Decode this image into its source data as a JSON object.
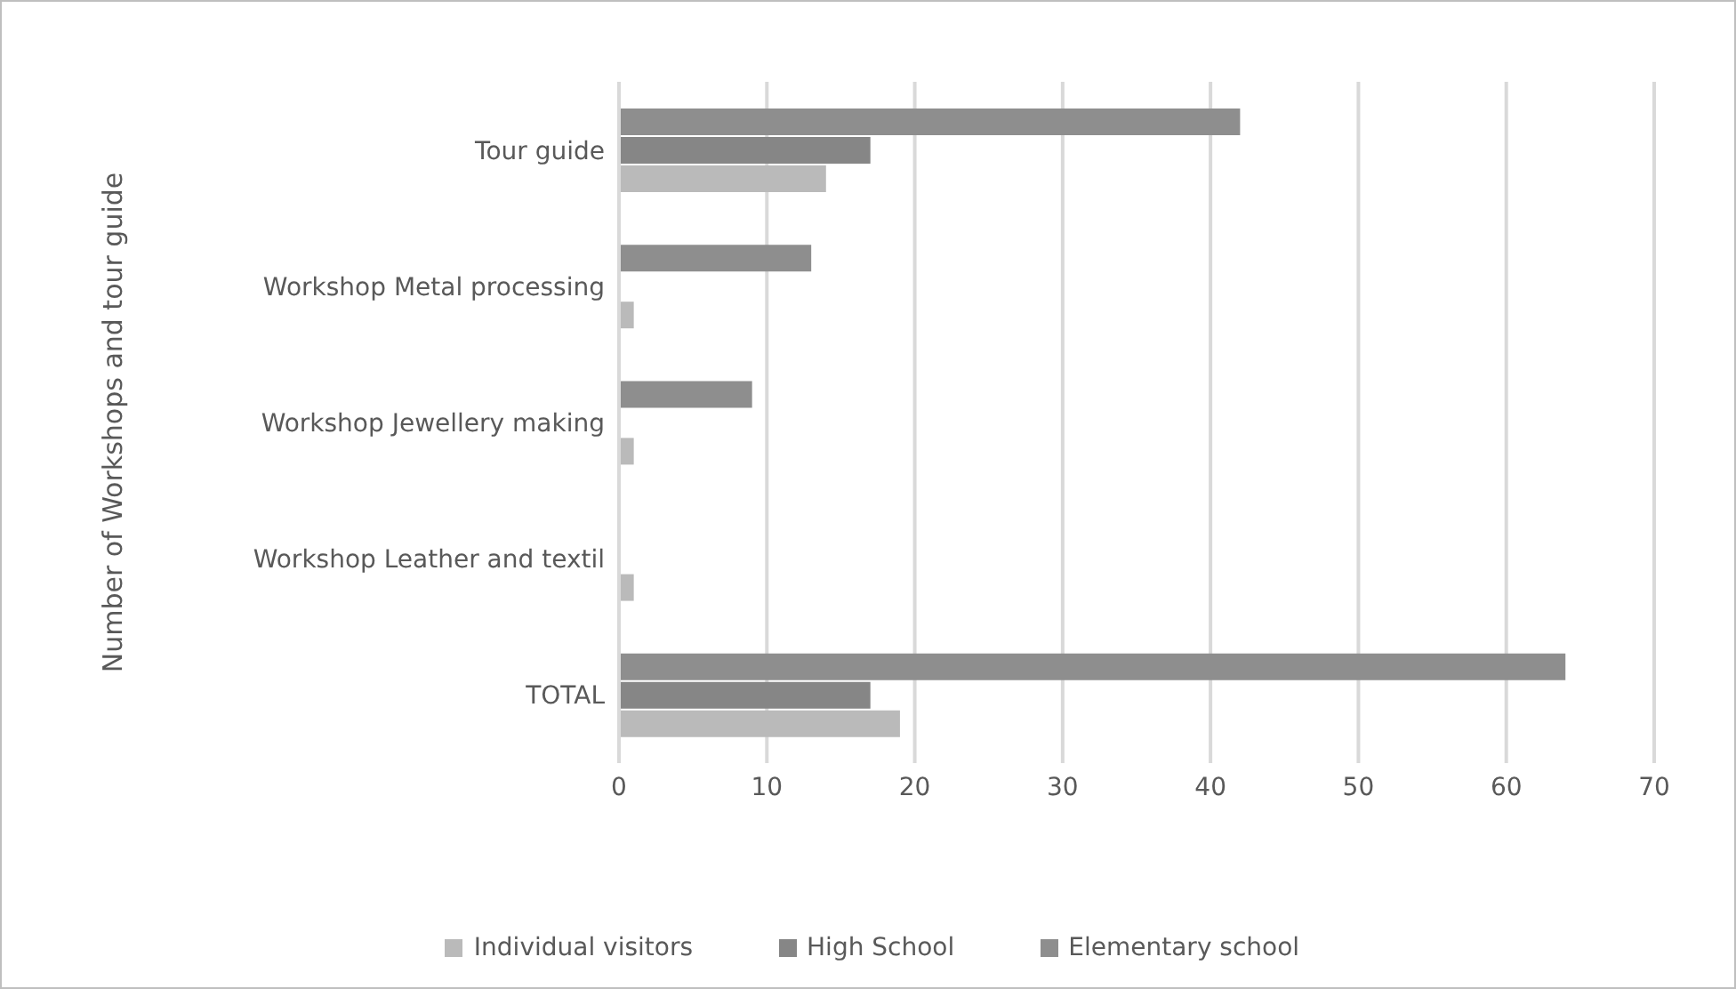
{
  "chart_data": {
    "type": "bar",
    "orientation": "horizontal",
    "ylabel": "Number of Workshops and tour guide",
    "categories": [
      "Tour guide",
      "Workshop Metal processing",
      "Workshop Jewellery making",
      "Workshop Leather and textil",
      "TOTAL"
    ],
    "series": [
      {
        "name": "Individual visitors",
        "color": "#bababa",
        "values": [
          14,
          1,
          1,
          1,
          19
        ]
      },
      {
        "name": "High School",
        "color": "#868686",
        "values": [
          17,
          null,
          null,
          null,
          17
        ]
      },
      {
        "name": "Elementary school",
        "color": "#8e8e8e",
        "values": [
          42,
          13,
          9,
          null,
          64
        ]
      }
    ],
    "xlim": [
      0,
      70
    ],
    "xticks": [
      0,
      10,
      20,
      30,
      40,
      50,
      60,
      70
    ],
    "grid": "x",
    "legend": "bottom"
  }
}
